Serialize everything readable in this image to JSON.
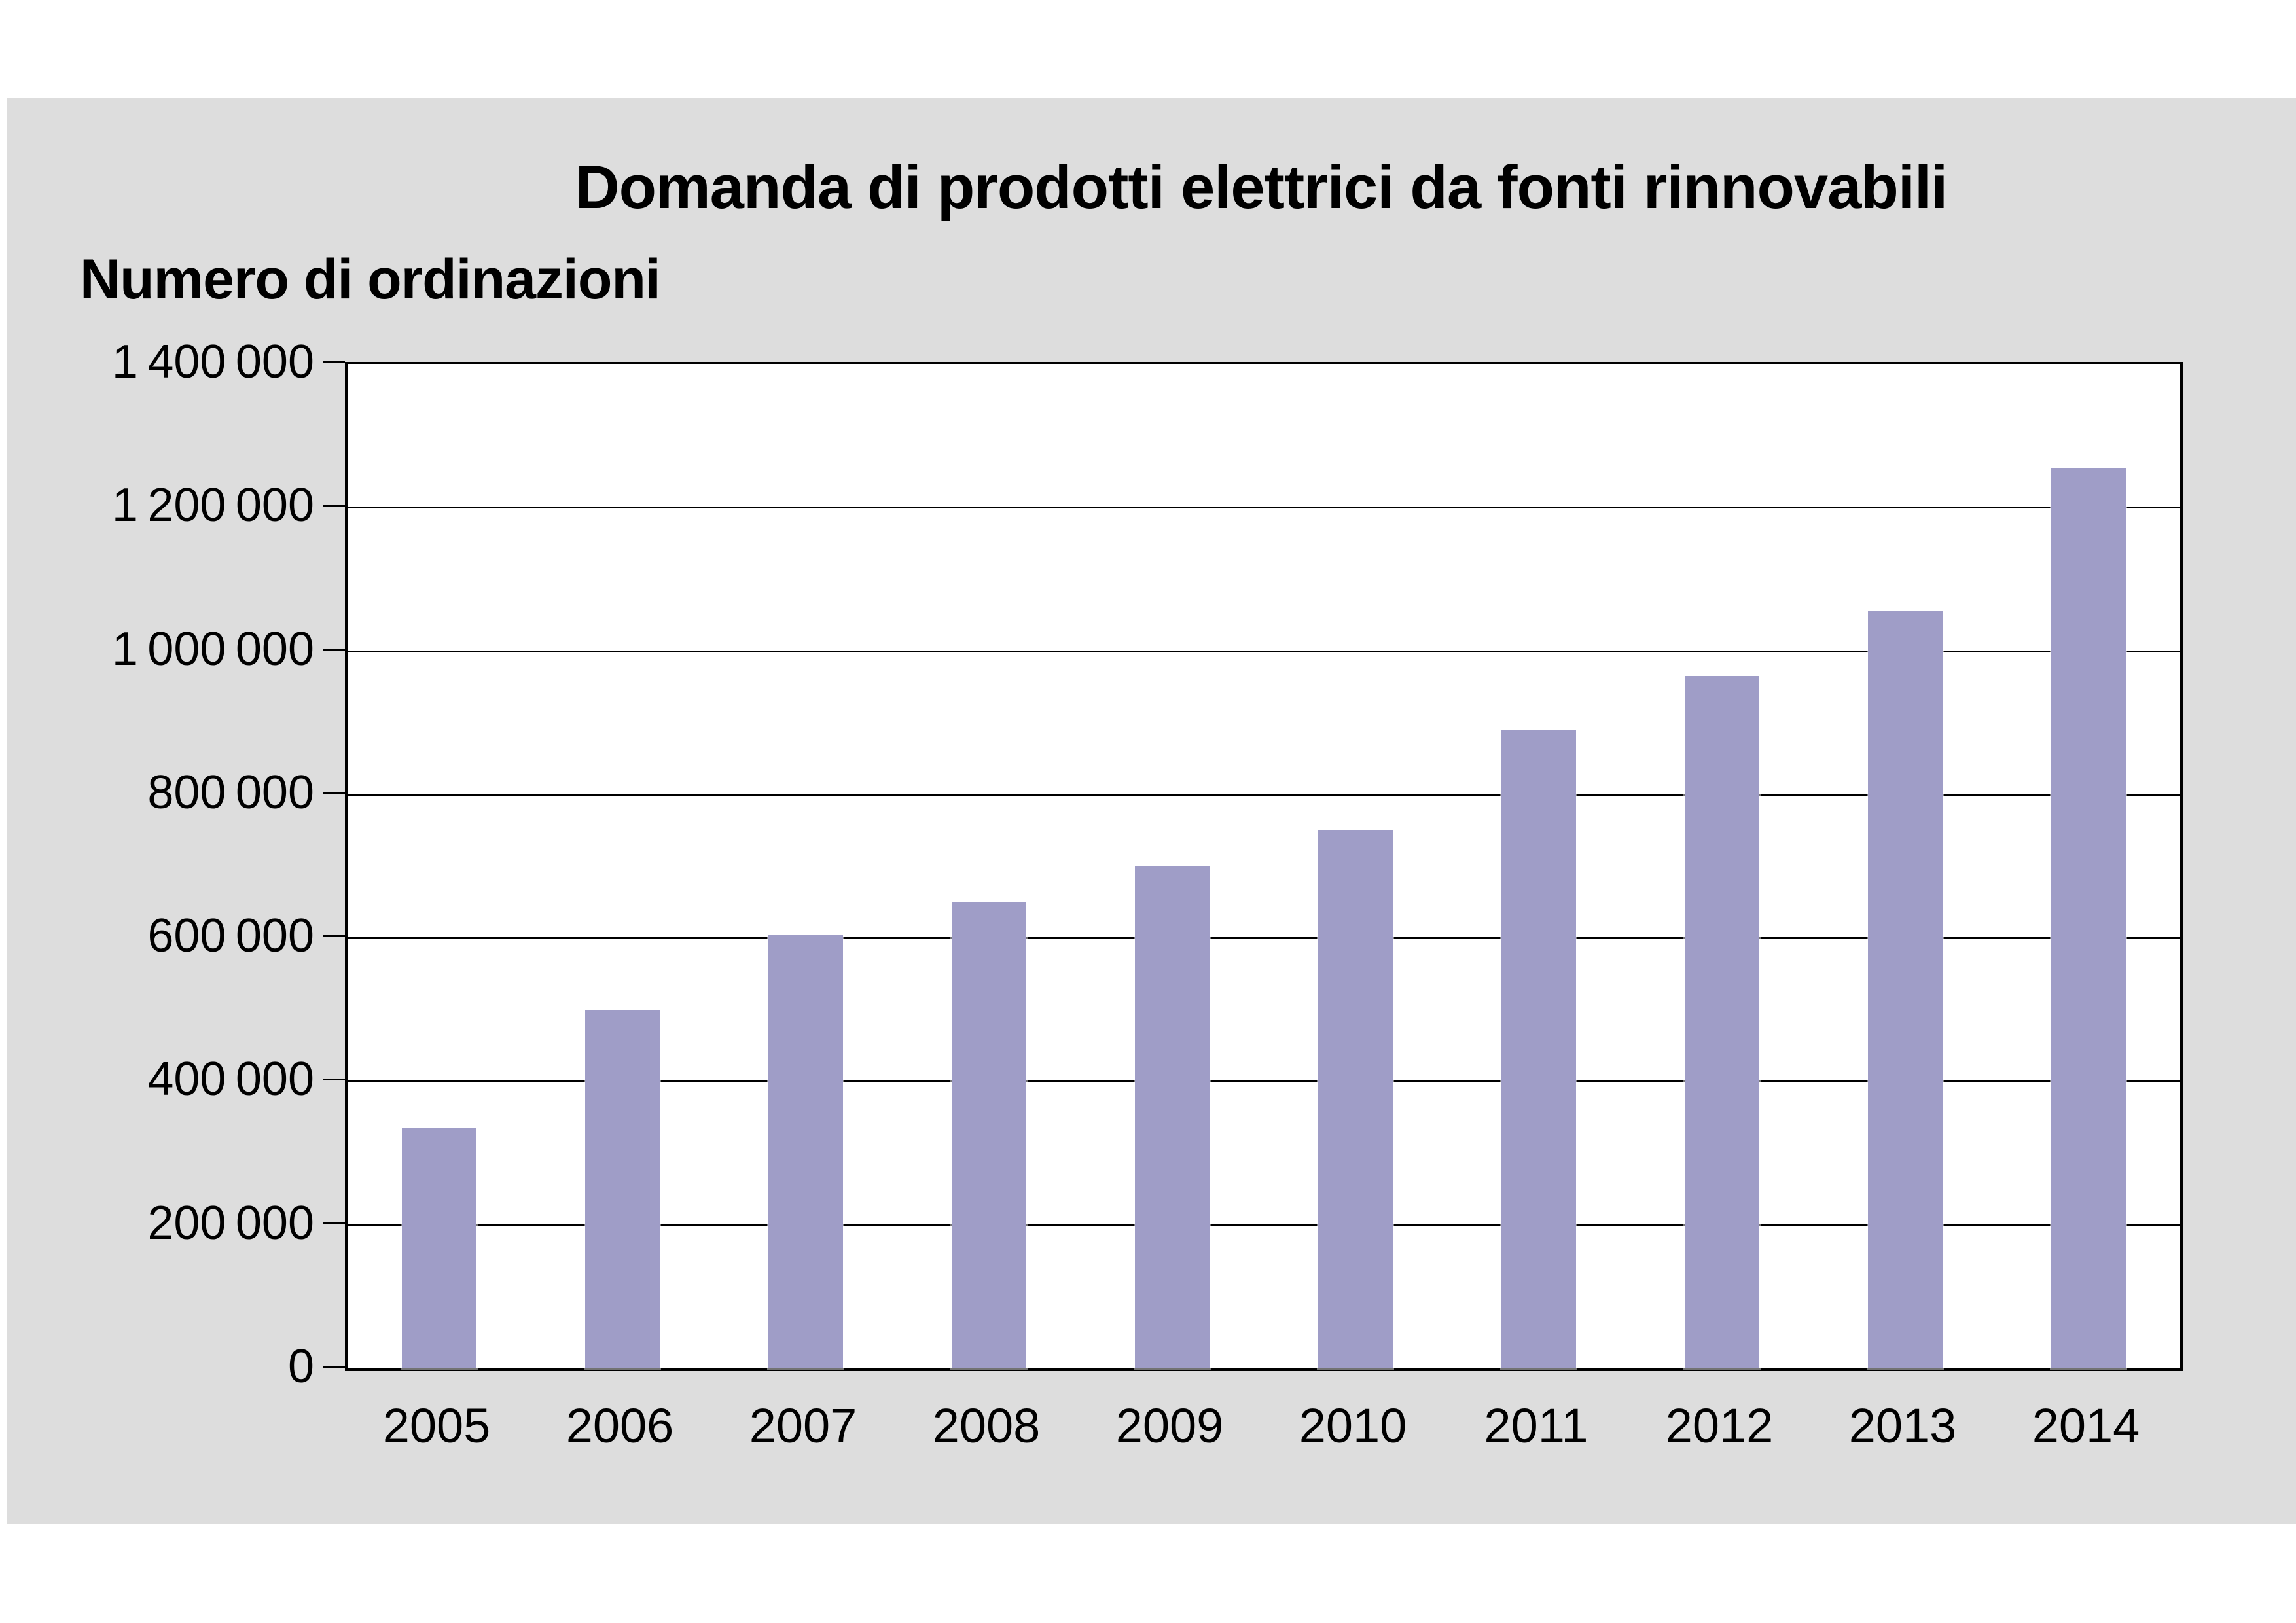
{
  "page": {
    "background": "#ffffff",
    "panel_background": "#dddddd",
    "text_color": "#000000",
    "grid_color": "#000000"
  },
  "chart_data": {
    "type": "bar",
    "title": "Domanda di prodotti elettrici da fonti rinnovabili",
    "ylabel": "Numero di ordinazioni",
    "xlabel": "",
    "categories": [
      "2005",
      "2006",
      "2007",
      "2008",
      "2009",
      "2010",
      "2011",
      "2012",
      "2013",
      "2014"
    ],
    "values": [
      335000,
      500000,
      605000,
      650000,
      700000,
      750000,
      890000,
      965000,
      1055000,
      1255000
    ],
    "ylim": [
      0,
      1400000
    ],
    "ytick_step": 200000,
    "ytick_labels_top_to_bottom": [
      "1 400 000",
      "1 200 000",
      "1 000 000",
      "800 000",
      "600 000",
      "400 000",
      "200 000",
      "0"
    ],
    "bar_color": "#9f9dc7",
    "grid": "horizontal",
    "legend_position": "none"
  }
}
